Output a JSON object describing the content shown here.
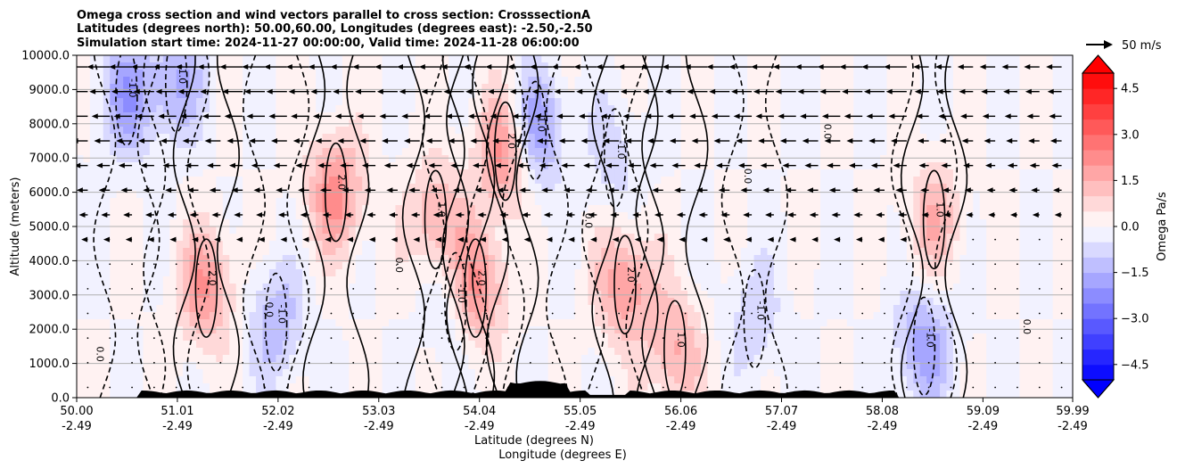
{
  "chart_data": {
    "type": "contourf-cross-section",
    "title_lines": [
      "Omega cross section and wind vectors parallel to cross section: CrosssectionA",
      "Latitudes (degrees north): 50.00,60.00, Longitudes (degrees east): -2.50,-2.50",
      "Simulation start time: 2024-11-27 00:00:00, Valid time: 2024-11-28 06:00:00"
    ],
    "ylabel": "Altitude (meters)",
    "xlabel_lines": [
      "Latitude (degrees N)",
      "Longitude (degrees E)"
    ],
    "x_ticks": [
      {
        "lat": "50.00",
        "lon": "-2.49"
      },
      {
        "lat": "51.01",
        "lon": "-2.49"
      },
      {
        "lat": "52.02",
        "lon": "-2.49"
      },
      {
        "lat": "53.03",
        "lon": "-2.49"
      },
      {
        "lat": "54.04",
        "lon": "-2.49"
      },
      {
        "lat": "55.05",
        "lon": "-2.49"
      },
      {
        "lat": "56.06",
        "lon": "-2.49"
      },
      {
        "lat": "57.07",
        "lon": "-2.49"
      },
      {
        "lat": "58.08",
        "lon": "-2.49"
      },
      {
        "lat": "59.09",
        "lon": "-2.49"
      },
      {
        "lat": "59.99",
        "lon": "-2.49"
      }
    ],
    "xlim": [
      50.0,
      59.99
    ],
    "y_ticks": [
      "0.0",
      "1000.0",
      "2000.0",
      "3000.0",
      "4000.0",
      "5000.0",
      "6000.0",
      "7000.0",
      "8000.0",
      "9000.0",
      "10000.0"
    ],
    "ylim": [
      0,
      10000
    ],
    "grid": "horizontal",
    "colorbar": {
      "label": "Omega Pa/s",
      "ticks": [
        "−4.5",
        "−3.0",
        "−1.5",
        "0.0",
        "1.5",
        "3.0",
        "4.5"
      ],
      "range": [
        -5.0,
        5.0
      ],
      "extend": "both"
    },
    "quiver_key": {
      "label": "50 m/s",
      "speed": 50
    },
    "omega_cells": [
      {
        "lat": 51.3,
        "alt": 3200,
        "value": 2.0
      },
      {
        "lat": 52.6,
        "alt": 6000,
        "value": 2.2
      },
      {
        "lat": 53.6,
        "alt": 5200,
        "value": 1.6
      },
      {
        "lat": 54.0,
        "alt": 3200,
        "value": 2.6
      },
      {
        "lat": 54.3,
        "alt": 7200,
        "value": 2.4
      },
      {
        "lat": 55.5,
        "alt": 3300,
        "value": 2.0
      },
      {
        "lat": 56.0,
        "alt": 1400,
        "value": 1.6
      },
      {
        "lat": 58.6,
        "alt": 5200,
        "value": 1.4
      },
      {
        "lat": 54.6,
        "alt": 7800,
        "value": -2.2
      },
      {
        "lat": 50.5,
        "alt": 8800,
        "value": -1.8
      },
      {
        "lat": 51.0,
        "alt": 9200,
        "value": -1.5
      },
      {
        "lat": 52.0,
        "alt": 2200,
        "value": -1.4
      },
      {
        "lat": 53.8,
        "alt": 2800,
        "value": -1.1
      },
      {
        "lat": 58.5,
        "alt": 1500,
        "value": -1.8
      },
      {
        "lat": 56.8,
        "alt": 2300,
        "value": -0.9
      },
      {
        "lat": 55.4,
        "alt": 7000,
        "value": -0.8
      }
    ],
    "contour_labels": [
      "0.0",
      "1.0",
      "2.0",
      "-1.0"
    ]
  },
  "colors": {
    "positive_max": "#ff0000",
    "negative_max": "#0000ff",
    "neutral": "#ffffff",
    "terrain": "#000000",
    "grid": "#b0b0b0"
  }
}
